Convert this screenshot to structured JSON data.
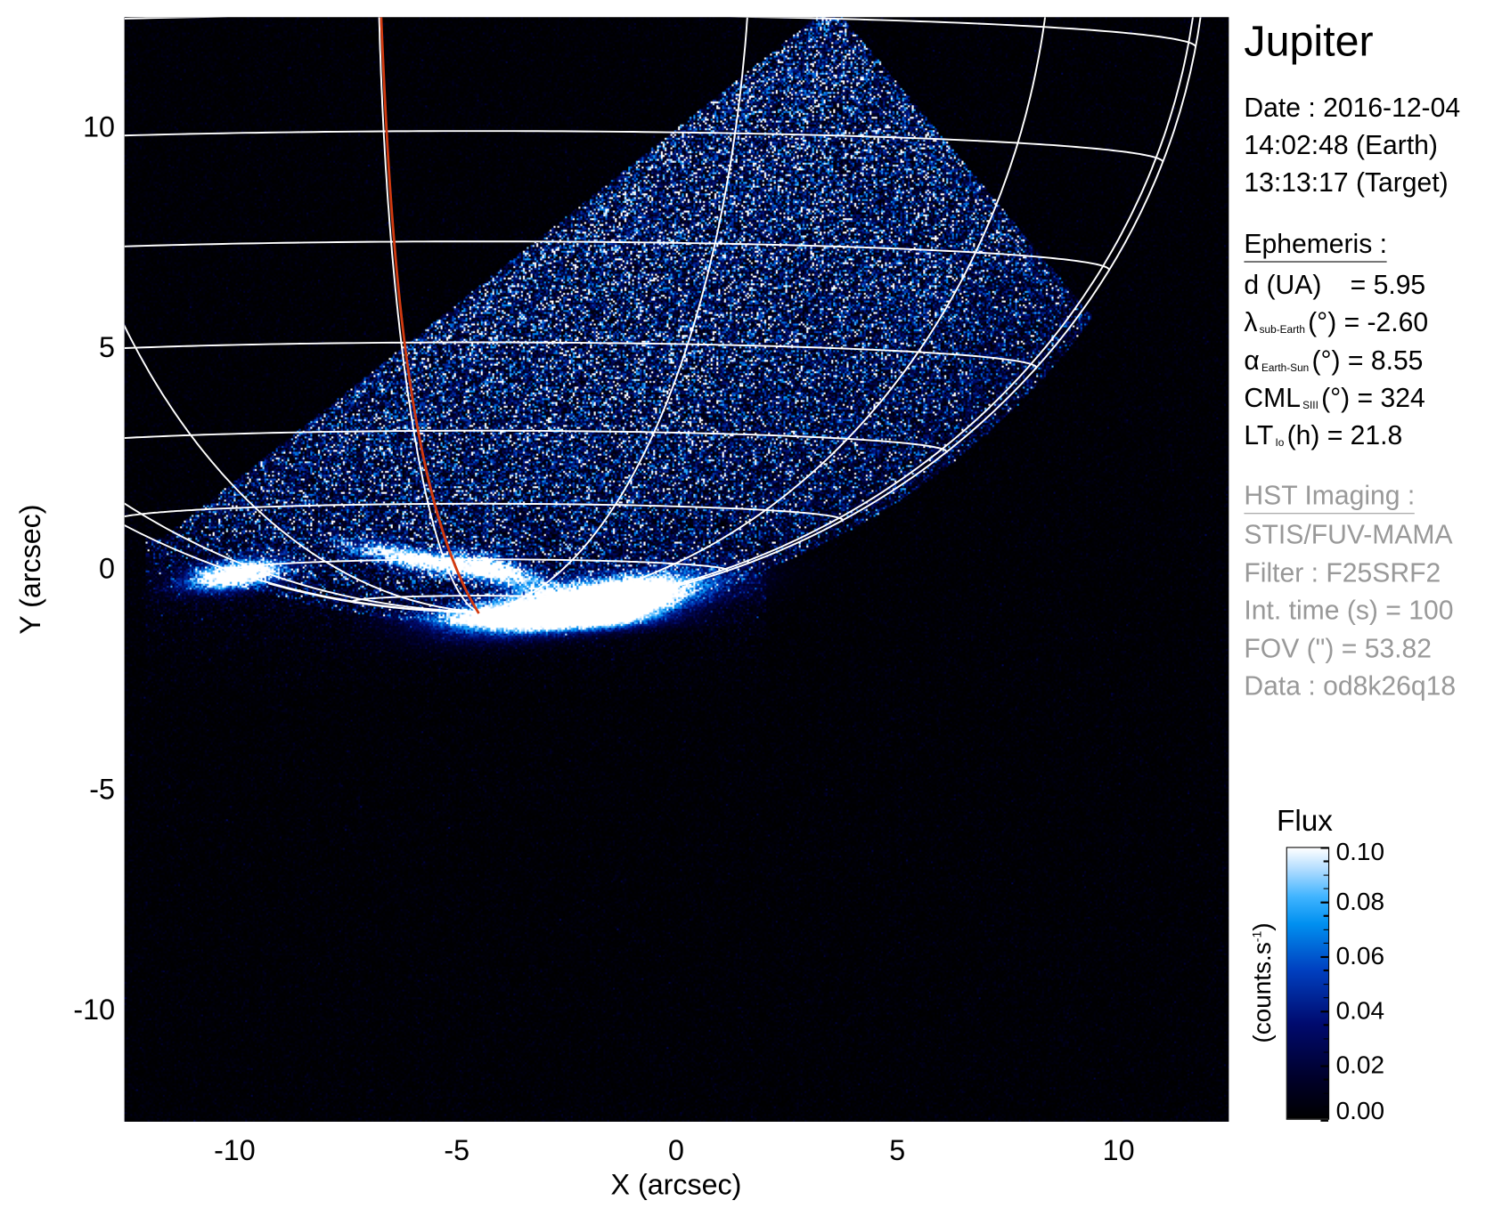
{
  "info": {
    "title": "Jupiter",
    "date": "Date : 2016-12-04",
    "time_earth": "14:02:48 (Earth)",
    "time_target": "13:13:17 (Target)",
    "ephemeris_header": "Ephemeris :",
    "distance": {
      "label": "d (UA)",
      "value": "= 5.95"
    },
    "sub_earth_lat": {
      "symbol": "λ",
      "sub": "sub-Earth",
      "rest": "(°) = -2.60"
    },
    "phase_angle": {
      "symbol": "α",
      "sub": "Earth-Sun",
      "rest": "(°) = 8.55"
    },
    "cml": {
      "symbol": "CML",
      "sub": "SIII",
      "rest": "(°) = 324"
    },
    "lt_io": {
      "symbol": "LT",
      "sub": "Io",
      "rest": "(h) = 21.8"
    },
    "hst_header": "HST Imaging :",
    "instrument": "STIS/FUV-MAMA",
    "filter": "Filter : F25SRF2",
    "int_time": "Int. time (s) = 100",
    "fov": "FOV (\") = 53.82",
    "dataset": "Data : od8k26q18"
  },
  "chart_data": {
    "type": "heatmap",
    "xlabel": "X (arcsec)",
    "ylabel": "Y (arcsec)",
    "xlim": [
      -12.5,
      12.5
    ],
    "ylim": [
      -12.5,
      12.5
    ],
    "xticks": [
      "-10",
      "-5",
      "0",
      "5",
      "10"
    ],
    "yticks": [
      "10",
      "5",
      "0",
      "-5",
      "-10"
    ],
    "grid": "planetographic latitude/longitude grid",
    "colorbar": {
      "title": "Flux",
      "unit": "(counts.s",
      "unit_exp": "-1",
      "unit_close": ")",
      "range": [
        0.0,
        0.1
      ],
      "ticks": [
        "0.10",
        "0.08",
        "0.06",
        "0.04",
        "0.02",
        "0.00"
      ],
      "colormap": [
        "#000000",
        "#000a6e",
        "#0040c0",
        "#0090f0",
        "#b0dcff",
        "#ffffff"
      ]
    },
    "colors": {
      "grid": "#ffffff",
      "footprint_line": "#d23a10",
      "background": "#000000"
    }
  }
}
